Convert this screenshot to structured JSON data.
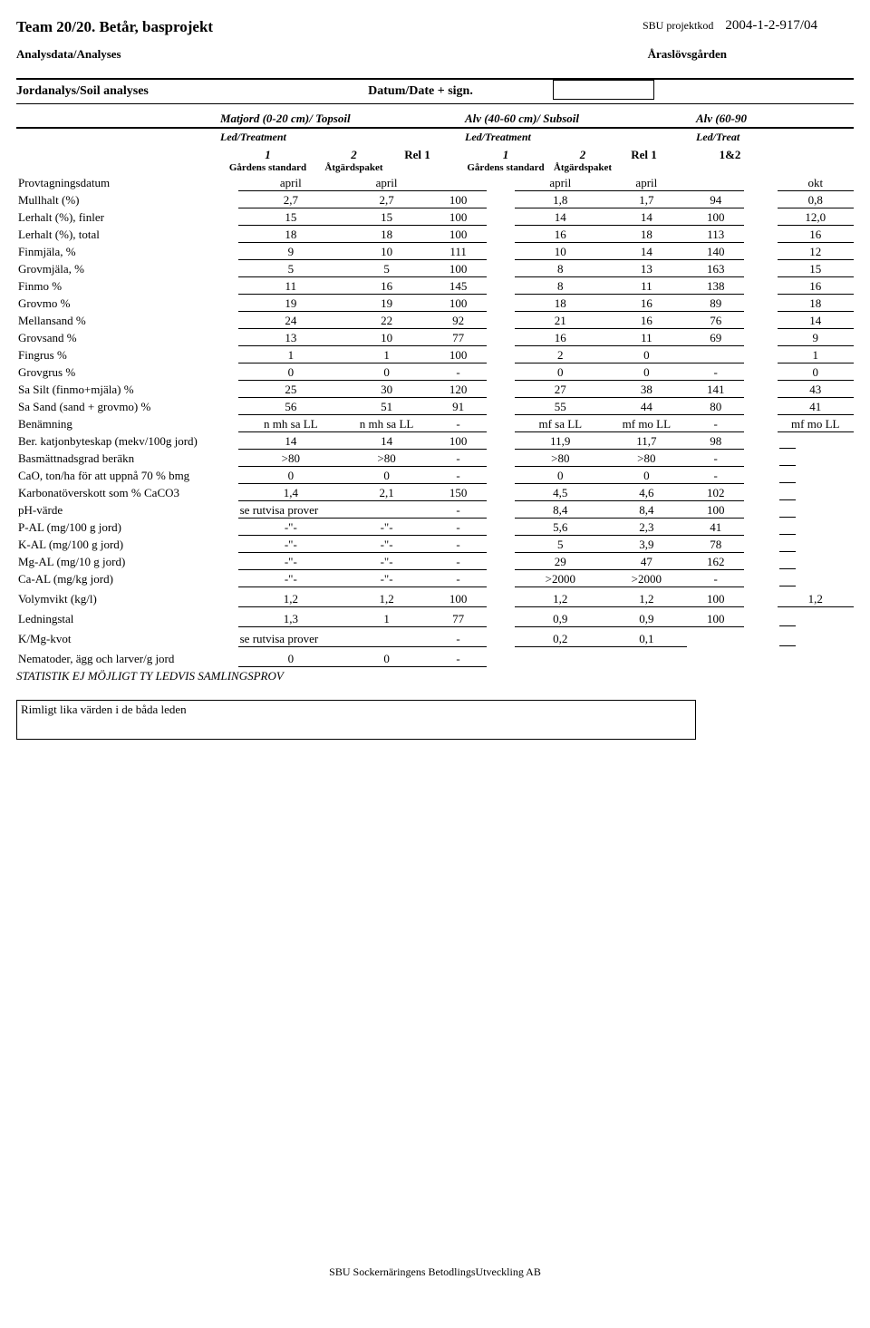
{
  "header": {
    "team_title": "Team 20/20. Betår, basprojekt",
    "proj_code_label": "SBU projektkod",
    "proj_code_value": "2004-1-2-917/04",
    "analyses_label": "Analysdata/Analyses",
    "location": "Åraslövsgården"
  },
  "section": {
    "title": "Jordanalys/Soil analyses",
    "date_label": "Datum/Date + sign."
  },
  "layers": {
    "topsoil": "Matjord (0-20 cm)/ Topsoil",
    "subsoil": "Alv (40-60 cm)/ Subsoil",
    "deep": "Alv (60-90",
    "led": "Led/Treatment",
    "led3": "Led/Treat",
    "col1": "1",
    "col2": "2",
    "rel1": "Rel 1",
    "col3": "1",
    "col4": "2",
    "rel2": "Rel 1",
    "col5": "1&2",
    "gstd": "Gårdens standard",
    "atg": "Åtgärdspaket"
  },
  "rows": [
    {
      "label": "Provtagningsdatum",
      "v": [
        "april",
        "april",
        "",
        "april",
        "april",
        "",
        "okt"
      ]
    },
    {
      "label": "Mullhalt  (%)",
      "v": [
        "2,7",
        "2,7",
        "100",
        "1,8",
        "1,7",
        "94",
        "0,8"
      ]
    },
    {
      "label": "Lerhalt  (%), finler",
      "v": [
        "15",
        "15",
        "100",
        "14",
        "14",
        "100",
        "12,0"
      ]
    },
    {
      "label": "Lerhalt  (%), total",
      "v": [
        "18",
        "18",
        "100",
        "16",
        "18",
        "113",
        "16"
      ]
    },
    {
      "label": "Finmjäla, %",
      "v": [
        "9",
        "10",
        "111",
        "10",
        "14",
        "140",
        "12"
      ]
    },
    {
      "label": "Grovmjäla, %",
      "v": [
        "5",
        "5",
        "100",
        "8",
        "13",
        "163",
        "15"
      ]
    },
    {
      "label": "Finmo %",
      "v": [
        "11",
        "16",
        "145",
        "8",
        "11",
        "138",
        "16"
      ]
    },
    {
      "label": "Grovmo %",
      "v": [
        "19",
        "19",
        "100",
        "18",
        "16",
        "89",
        "18"
      ]
    },
    {
      "label": "Mellansand %",
      "v": [
        "24",
        "22",
        "92",
        "21",
        "16",
        "76",
        "14"
      ]
    },
    {
      "label": "Grovsand %",
      "v": [
        "13",
        "10",
        "77",
        "16",
        "11",
        "69",
        "9"
      ]
    },
    {
      "label": "Fingrus %",
      "v": [
        "1",
        "1",
        "100",
        "2",
        "0",
        "",
        "1"
      ]
    },
    {
      "label": "Grovgrus %",
      "v": [
        "0",
        "0",
        "-",
        "0",
        "0",
        "-",
        "0"
      ]
    },
    {
      "label": "Sa Silt (finmo+mjäla) %",
      "v": [
        "25",
        "30",
        "120",
        "27",
        "38",
        "141",
        "43"
      ]
    },
    {
      "label": "Sa Sand (sand + grovmo) %",
      "v": [
        "56",
        "51",
        "91",
        "55",
        "44",
        "80",
        "41"
      ]
    },
    {
      "label": "Benämning",
      "v": [
        "n mh sa LL",
        "n mh sa LL",
        "-",
        "mf sa LL",
        "mf mo LL",
        "-",
        "mf mo LL"
      ]
    },
    {
      "label": "Ber. katjonbyteskap (mekv/100g jord)",
      "v": [
        "14",
        "14",
        "100",
        "11,9",
        "11,7",
        "98",
        ""
      ],
      "partial5": true
    },
    {
      "label": "Basmättnadsgrad beräkn",
      "v": [
        ">80",
        ">80",
        "-",
        ">80",
        ">80",
        "-",
        ""
      ],
      "partial5": true
    },
    {
      "label": "CaO, ton/ha för att uppnå 70 % bmg",
      "v": [
        "0",
        "0",
        "-",
        "0",
        "0",
        "-",
        ""
      ],
      "partial5": true
    },
    {
      "label": "Karbonatöverskott som % CaCO3",
      "v": [
        "1,4",
        "2,1",
        "150",
        "4,5",
        "4,6",
        "102",
        ""
      ],
      "partial5": true
    },
    {
      "label": "pH-värde",
      "span": "se rutvisa prover",
      "v": [
        "",
        "",
        "-",
        "8,4",
        "8,4",
        "100",
        ""
      ],
      "partial5": true
    },
    {
      "label": "P-AL  (mg/100 g jord)",
      "v": [
        "-\"-",
        "-\"-",
        "-",
        "5,6",
        "2,3",
        "41",
        ""
      ],
      "partial5": true
    },
    {
      "label": "K-AL  (mg/100 g jord)",
      "v": [
        "-\"-",
        "-\"-",
        "-",
        "5",
        "3,9",
        "78",
        ""
      ],
      "partial5": true
    },
    {
      "label": "Mg-AL  (mg/10 g jord)",
      "v": [
        "-\"-",
        "-\"-",
        "-",
        "29",
        "47",
        "162",
        ""
      ],
      "partial5": true
    },
    {
      "label": "Ca-AL  (mg/kg jord)",
      "v": [
        "-\"-",
        "-\"-",
        "-",
        ">2000",
        ">2000",
        "-",
        ""
      ],
      "spacer": true,
      "partial5": true
    },
    {
      "label": "Volymvikt (kg/l)",
      "v": [
        "1,2",
        "1,2",
        "100",
        "1,2",
        "1,2",
        "100",
        "1,2"
      ],
      "spacer": true
    },
    {
      "label": "Ledningstal",
      "v": [
        "1,3",
        "1",
        "77",
        "0,9",
        "0,9",
        "100",
        ""
      ],
      "spacer": true,
      "partial5": true
    },
    {
      "label": "K/Mg-kvot",
      "span": "se rutvisa prover",
      "v": [
        "",
        "",
        "-",
        "0,2",
        "0,1",
        "",
        ""
      ],
      "spacer": true,
      "partial5": true,
      "noR2": true
    },
    {
      "label": "Nematoder, ägg och larver/g jord",
      "v": [
        "0",
        "0",
        "-",
        "",
        "",
        "",
        ""
      ],
      "no_right": true
    }
  ],
  "stat_note": "STATISTIK EJ MÖJLIGT TY LEDVIS SAMLINGSPROV",
  "comment": "Rimligt lika värden i de båda leden",
  "footer": "SBU Sockernäringens BetodlingsUtveckling AB",
  "style": {
    "border_color": "#000000",
    "bg": "#ffffff",
    "font_body": 13
  }
}
